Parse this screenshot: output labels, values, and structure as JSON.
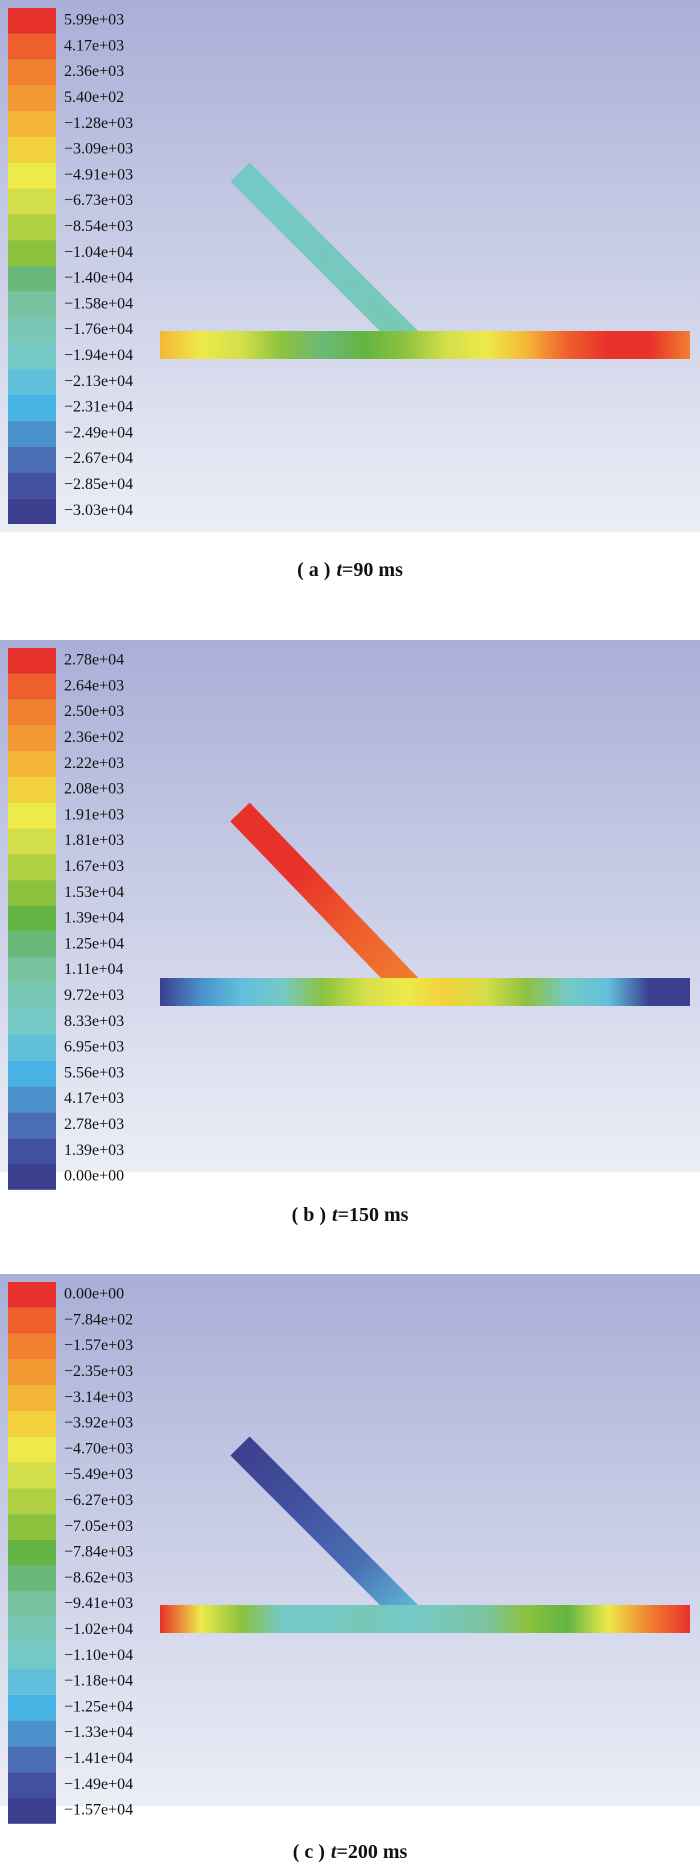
{
  "panels": [
    {
      "legend": [
        "5.99e+03",
        "4.17e+03",
        "2.36e+03",
        "5.40e+02",
        "−1.28e+03",
        "−3.09e+03",
        "−4.91e+03",
        "−6.73e+03",
        "−8.54e+03",
        "−1.04e+04",
        "−1.40e+04",
        "−1.58e+04",
        "−1.76e+04",
        "−1.94e+04",
        "−2.13e+04",
        "−2.31e+04",
        "−2.49e+04",
        "−2.67e+04",
        "−2.85e+04",
        "−3.03e+04"
      ],
      "caption": {
        "label": "( a )",
        "variable": "t",
        "value": "=90 ms"
      }
    },
    {
      "legend": [
        "2.78e+04",
        "2.64e+03",
        "2.50e+03",
        "2.36e+02",
        "2.22e+03",
        "2.08e+03",
        "1.91e+03",
        "1.81e+03",
        "1.67e+03",
        "1.53e+04",
        "1.39e+04",
        "1.25e+04",
        "1.11e+04",
        "9.72e+03",
        "8.33e+03",
        "6.95e+03",
        "5.56e+03",
        "4.17e+03",
        "2.78e+03",
        "1.39e+03",
        "0.00e+00"
      ],
      "caption": {
        "label": "( b )",
        "variable": "t",
        "value": "=150 ms"
      }
    },
    {
      "legend": [
        "0.00e+00",
        "−7.84e+02",
        "−1.57e+03",
        "−2.35e+03",
        "−3.14e+03",
        "−3.92e+03",
        "−4.70e+03",
        "−5.49e+03",
        "−6.27e+03",
        "−7.05e+03",
        "−7.84e+03",
        "−8.62e+03",
        "−9.41e+03",
        "−1.02e+04",
        "−1.10e+04",
        "−1.18e+04",
        "−1.25e+04",
        "−1.33e+04",
        "−1.41e+04",
        "−1.49e+04",
        "−1.57e+04"
      ],
      "caption": {
        "label": "( c )",
        "variable": "t",
        "value": "=200 ms"
      }
    }
  ]
}
